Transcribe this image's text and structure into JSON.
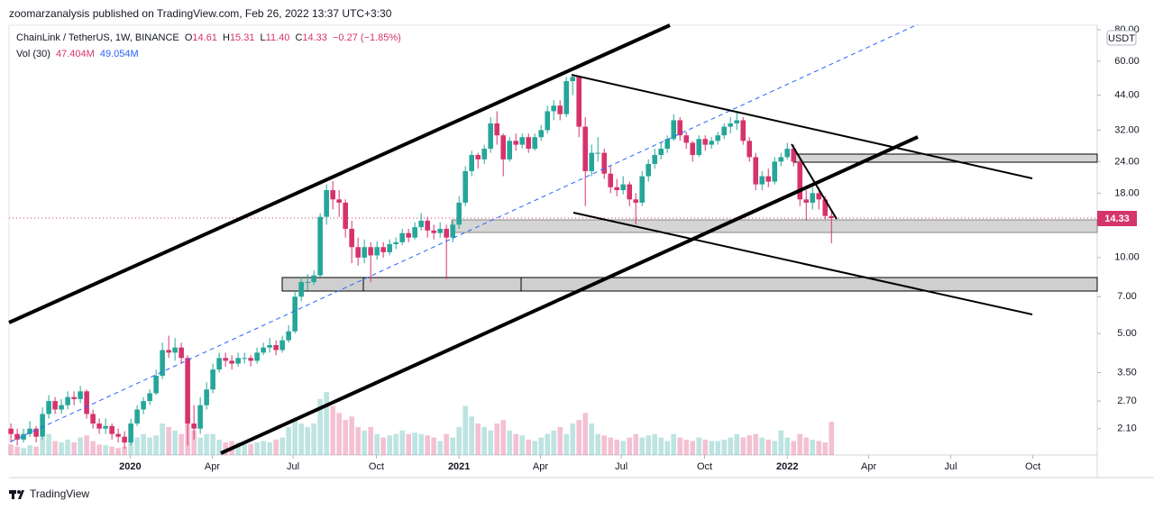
{
  "chart_data": {
    "type": "candlestick",
    "published": "zoomarzanalysis published on TradingView.com, Feb 26, 2022 13:37 UTC+3:30",
    "symbol": "ChainLink / TetherUS, 1W, BINANCE",
    "ohlc_header": [
      "O",
      "14.61",
      "H",
      "15.31",
      "L",
      "11.40",
      "C",
      "14.33"
    ],
    "change": "−0.27 (−1.85%)",
    "vol_legend": {
      "name": "Vol (30)",
      "last_label": "47.404M",
      "ma_label": "49.054M"
    },
    "currency": "USDT",
    "last_price_label": "14.33",
    "brand": "TradingView",
    "log": true,
    "grid": false,
    "up_color": "#26a69a",
    "down_color": "#d6336c",
    "ylim": [
      1.65,
      83.3
    ],
    "yticks": [
      {
        "value": 2.1,
        "label": "2.10"
      },
      {
        "value": 2.7,
        "label": "2.70"
      },
      {
        "value": 3.5,
        "label": "3.50"
      },
      {
        "value": 5,
        "label": "5.00"
      },
      {
        "value": 7,
        "label": "7.00"
      },
      {
        "value": 10,
        "label": "10.00"
      },
      {
        "value": 18,
        "label": "18.00"
      },
      {
        "value": 24,
        "label": "24.00"
      },
      {
        "value": 32,
        "label": "32.00"
      },
      {
        "value": 44,
        "label": "44.00"
      },
      {
        "value": 60,
        "label": "60.00"
      },
      {
        "value": 80,
        "label": "80.00"
      }
    ],
    "xlim": [
      -0.3,
      172.1
    ],
    "xticks": [
      {
        "value": 18.9,
        "label": "2020"
      },
      {
        "value": 31.9,
        "label": "Apr"
      },
      {
        "value": 44.7,
        "label": "Jul"
      },
      {
        "value": 57.9,
        "label": "Oct"
      },
      {
        "value": 71,
        "label": "2021"
      },
      {
        "value": 83.9,
        "label": "Apr"
      },
      {
        "value": 96.7,
        "label": "Jul"
      },
      {
        "value": 109.9,
        "label": "Oct"
      },
      {
        "value": 123,
        "label": "2022"
      },
      {
        "value": 135.9,
        "label": "Apr"
      },
      {
        "value": 148.9,
        "label": "Jul"
      },
      {
        "value": 161.9,
        "label": "Oct"
      }
    ],
    "ohlc": [
      [
        2.1,
        2.2,
        1.85,
        2.0
      ],
      [
        2.0,
        2.1,
        1.8,
        1.9
      ],
      [
        1.9,
        2.1,
        1.85,
        2.0
      ],
      [
        2.0,
        2.25,
        1.95,
        2.1
      ],
      [
        2.1,
        2.15,
        1.85,
        1.95
      ],
      [
        1.95,
        2.55,
        1.9,
        2.4
      ],
      [
        2.4,
        2.85,
        2.3,
        2.7
      ],
      [
        2.7,
        2.8,
        2.4,
        2.5
      ],
      [
        2.5,
        2.75,
        2.4,
        2.6
      ],
      [
        2.6,
        2.95,
        2.5,
        2.8
      ],
      [
        2.8,
        2.95,
        2.6,
        2.75
      ],
      [
        2.75,
        3.1,
        2.65,
        2.95
      ],
      [
        2.95,
        3.0,
        2.3,
        2.4
      ],
      [
        2.4,
        2.5,
        2.1,
        2.2
      ],
      [
        2.2,
        2.3,
        2.0,
        2.1
      ],
      [
        2.1,
        2.3,
        2.0,
        2.15
      ],
      [
        2.15,
        2.2,
        1.9,
        2.0
      ],
      [
        2.0,
        2.1,
        1.85,
        1.95
      ],
      [
        1.95,
        2.05,
        1.75,
        1.85
      ],
      [
        1.85,
        2.3,
        1.8,
        2.2
      ],
      [
        2.2,
        2.6,
        2.15,
        2.5
      ],
      [
        2.5,
        2.8,
        2.4,
        2.7
      ],
      [
        2.7,
        3.0,
        2.6,
        2.9
      ],
      [
        2.9,
        3.6,
        2.85,
        3.4
      ],
      [
        3.4,
        4.6,
        3.3,
        4.3
      ],
      [
        4.3,
        4.9,
        4.0,
        4.2
      ],
      [
        4.2,
        4.8,
        3.9,
        4.4
      ],
      [
        4.4,
        4.6,
        3.8,
        4.0
      ],
      [
        4.0,
        4.1,
        1.8,
        2.2
      ],
      [
        2.2,
        2.6,
        1.9,
        2.1
      ],
      [
        2.1,
        2.8,
        2.0,
        2.6
      ],
      [
        2.6,
        3.2,
        2.5,
        3.0
      ],
      [
        3.0,
        3.8,
        2.9,
        3.6
      ],
      [
        3.6,
        4.2,
        3.5,
        4.0
      ],
      [
        4.0,
        4.2,
        3.7,
        3.9
      ],
      [
        3.9,
        4.1,
        3.6,
        3.8
      ],
      [
        3.8,
        4.2,
        3.7,
        4.0
      ],
      [
        4.0,
        4.2,
        3.8,
        4.0
      ],
      [
        4.0,
        4.1,
        3.7,
        3.9
      ],
      [
        3.9,
        4.4,
        3.8,
        4.2
      ],
      [
        4.2,
        4.6,
        4.1,
        4.4
      ],
      [
        4.4,
        4.8,
        4.2,
        4.5
      ],
      [
        4.5,
        4.7,
        4.1,
        4.3
      ],
      [
        4.3,
        4.9,
        4.2,
        4.7
      ],
      [
        4.7,
        5.4,
        4.6,
        5.1
      ],
      [
        5.1,
        7.3,
        5.0,
        7.0
      ],
      [
        7.0,
        8.4,
        6.7,
        8.0
      ],
      [
        8.0,
        8.6,
        7.4,
        8.0
      ],
      [
        8.0,
        8.9,
        7.8,
        8.5
      ],
      [
        8.5,
        15.0,
        8.4,
        14.5
      ],
      [
        14.5,
        19.5,
        13.5,
        18.5
      ],
      [
        18.5,
        20.1,
        15.5,
        17.0
      ],
      [
        17.0,
        18.5,
        14.5,
        16.5
      ],
      [
        16.5,
        17.0,
        12.0,
        13.0
      ],
      [
        13.0,
        14.0,
        9.5,
        11.0
      ],
      [
        11.0,
        12.0,
        9.3,
        10.0
      ],
      [
        10.0,
        11.8,
        9.5,
        11.0
      ],
      [
        11.0,
        11.5,
        8.0,
        10.2
      ],
      [
        10.2,
        11.6,
        9.8,
        11.0
      ],
      [
        11.0,
        11.5,
        10.0,
        10.5
      ],
      [
        10.5,
        11.8,
        10.2,
        11.3
      ],
      [
        11.3,
        12.0,
        10.8,
        11.5
      ],
      [
        11.5,
        13.0,
        11.2,
        12.5
      ],
      [
        12.5,
        13.0,
        11.5,
        12.0
      ],
      [
        12.0,
        13.8,
        11.8,
        13.2
      ],
      [
        13.2,
        15.0,
        12.8,
        14.0
      ],
      [
        14.0,
        14.5,
        12.0,
        12.8
      ],
      [
        12.8,
        13.5,
        11.8,
        12.5
      ],
      [
        12.5,
        13.8,
        12.0,
        13.0
      ],
      [
        13.0,
        13.5,
        8.2,
        12.0
      ],
      [
        12.0,
        14.0,
        11.5,
        13.5
      ],
      [
        13.5,
        17.5,
        13.0,
        16.5
      ],
      [
        16.5,
        23.0,
        16.0,
        22.0
      ],
      [
        22.0,
        26.5,
        21.0,
        25.5
      ],
      [
        25.5,
        26.0,
        22.5,
        24.5
      ],
      [
        24.5,
        28.0,
        23.5,
        27.0
      ],
      [
        27.0,
        36.0,
        26.0,
        34.0
      ],
      [
        34.0,
        38.0,
        28.0,
        30.5
      ],
      [
        30.5,
        31.0,
        21.0,
        24.5
      ],
      [
        24.5,
        30.0,
        24.0,
        29.0
      ],
      [
        29.0,
        31.0,
        26.5,
        28.0
      ],
      [
        28.0,
        31.0,
        27.0,
        30.0
      ],
      [
        30.0,
        31.0,
        26.0,
        27.0
      ],
      [
        27.0,
        31.0,
        26.5,
        30.0
      ],
      [
        30.0,
        33.5,
        29.0,
        32.0
      ],
      [
        32.0,
        40.0,
        31.0,
        38.0
      ],
      [
        38.0,
        42.0,
        35.0,
        40.0
      ],
      [
        40.0,
        42.0,
        35.0,
        37.0
      ],
      [
        37.0,
        52.0,
        36.0,
        50.0
      ],
      [
        50.0,
        53.0,
        44.0,
        52.0
      ],
      [
        52.0,
        52.5,
        30.0,
        33.0
      ],
      [
        33.0,
        36.0,
        16.0,
        22.0
      ],
      [
        22.0,
        28.0,
        21.0,
        26.0
      ],
      [
        26.0,
        30.0,
        24.0,
        26.0
      ],
      [
        26.0,
        27.0,
        20.5,
        21.5
      ],
      [
        21.5,
        23.0,
        18.0,
        19.0
      ],
      [
        19.0,
        20.5,
        17.5,
        18.5
      ],
      [
        18.5,
        21.0,
        17.8,
        19.5
      ],
      [
        19.5,
        20.0,
        16.0,
        17.0
      ],
      [
        17.0,
        18.0,
        13.5,
        16.5
      ],
      [
        16.5,
        22.0,
        16.0,
        21.0
      ],
      [
        21.0,
        24.5,
        20.0,
        23.5
      ],
      [
        23.5,
        27.0,
        22.5,
        25.5
      ],
      [
        25.5,
        28.5,
        24.5,
        27.0
      ],
      [
        27.0,
        30.5,
        26.0,
        29.5
      ],
      [
        29.5,
        37.0,
        29.0,
        35.0
      ],
      [
        35.0,
        36.0,
        29.0,
        30.5
      ],
      [
        30.5,
        31.5,
        27.0,
        28.5
      ],
      [
        28.5,
        29.0,
        24.0,
        25.5
      ],
      [
        25.5,
        30.5,
        25.0,
        29.5
      ],
      [
        29.5,
        30.5,
        26.5,
        28.0
      ],
      [
        28.0,
        30.0,
        27.0,
        29.0
      ],
      [
        29.0,
        31.5,
        28.0,
        30.5
      ],
      [
        30.5,
        34.0,
        29.5,
        33.0
      ],
      [
        33.0,
        36.0,
        31.0,
        34.0
      ],
      [
        34.0,
        38.0,
        32.0,
        35.0
      ],
      [
        35.0,
        36.0,
        28.0,
        29.0
      ],
      [
        29.0,
        30.0,
        24.0,
        25.0
      ],
      [
        25.0,
        26.0,
        18.5,
        19.5
      ],
      [
        19.5,
        22.0,
        18.5,
        21.0
      ],
      [
        21.0,
        22.5,
        19.0,
        20.0
      ],
      [
        20.0,
        25.0,
        19.5,
        24.0
      ],
      [
        24.0,
        26.0,
        23.0,
        25.0
      ],
      [
        25.0,
        28.5,
        24.5,
        27.0
      ],
      [
        27.0,
        28.0,
        23.0,
        24.0
      ],
      [
        24.0,
        24.5,
        16.0,
        17.0
      ],
      [
        17.0,
        18.5,
        14.0,
        16.5
      ],
      [
        16.5,
        19.0,
        15.5,
        18.0
      ],
      [
        18.0,
        19.0,
        15.5,
        17.0
      ],
      [
        17.0,
        17.5,
        14.2,
        14.61
      ],
      [
        14.61,
        15.31,
        11.4,
        14.33
      ]
    ],
    "volume": [
      15,
      12,
      10,
      14,
      12,
      25,
      30,
      20,
      18,
      22,
      18,
      25,
      28,
      20,
      15,
      14,
      12,
      10,
      12,
      20,
      25,
      30,
      25,
      28,
      45,
      40,
      35,
      30,
      55,
      35,
      25,
      30,
      30,
      22,
      18,
      20,
      18,
      15,
      16,
      18,
      20,
      18,
      22,
      25,
      40,
      50,
      45,
      40,
      45,
      80,
      90,
      70,
      60,
      50,
      55,
      40,
      35,
      40,
      30,
      25,
      28,
      30,
      35,
      30,
      32,
      30,
      28,
      25,
      20,
      30,
      25,
      40,
      70,
      55,
      45,
      40,
      35,
      45,
      50,
      35,
      30,
      28,
      22,
      20,
      25,
      30,
      35,
      40,
      30,
      45,
      50,
      60,
      45,
      30,
      28,
      25,
      22,
      20,
      25,
      30,
      25,
      28,
      30,
      25,
      20,
      30,
      25,
      22,
      20,
      25,
      22,
      20,
      20,
      22,
      25,
      30,
      25,
      28,
      30,
      25,
      22,
      20,
      35,
      25,
      20,
      30,
      25,
      22,
      20,
      18,
      47.404
    ]
  }
}
